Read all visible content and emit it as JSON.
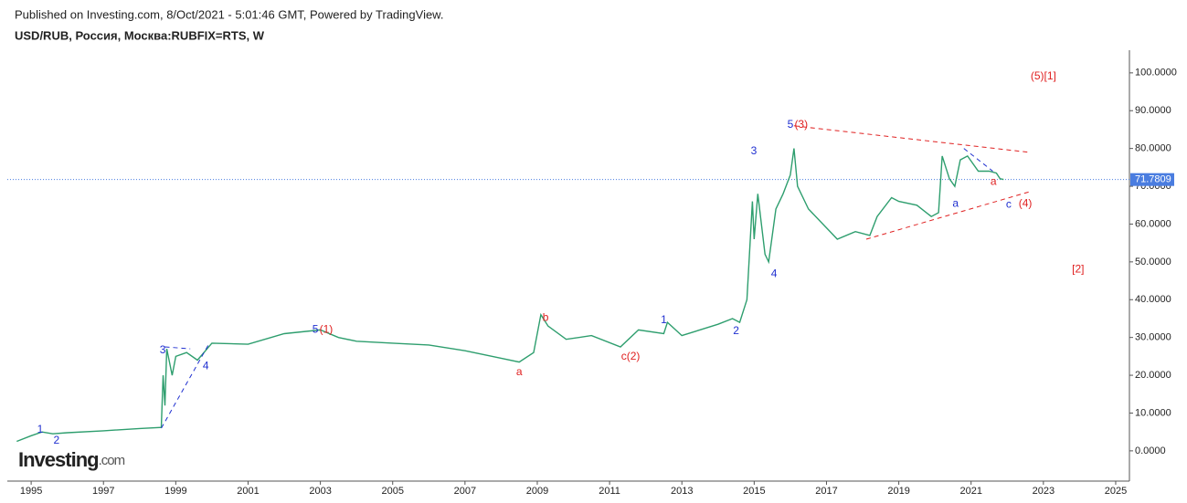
{
  "chart_data": {
    "type": "line",
    "published": "Published on Investing.com, 8/Oct/2021 - 5:01:46 GMT, Powered by TradingView.",
    "title": "USD/RUB, Россия, Москва:RUBFIX=RTS, W",
    "logo": "Investing",
    "logo_suffix": ".com",
    "color": "#2e9e6e",
    "x": [
      1994.6,
      1995.0,
      1995.3,
      1995.6,
      1996.0,
      1997.0,
      1998.0,
      1998.6,
      1998.65,
      1998.7,
      1998.75,
      1998.9,
      1999.0,
      1999.3,
      1999.6,
      2000.0,
      2001.0,
      2002.0,
      2003.0,
      2003.5,
      2004.0,
      2005.0,
      2006.0,
      2007.0,
      2008.0,
      2008.5,
      2008.9,
      2009.1,
      2009.3,
      2009.8,
      2010.5,
      2011.3,
      2011.8,
      2012.5,
      2012.6,
      2013.0,
      2014.0,
      2014.4,
      2014.6,
      2014.8,
      2014.95,
      2015.0,
      2015.1,
      2015.3,
      2015.4,
      2015.6,
      2015.8,
      2016.0,
      2016.1,
      2016.2,
      2016.5,
      2017.0,
      2017.3,
      2017.8,
      2018.2,
      2018.4,
      2018.8,
      2019.0,
      2019.5,
      2019.9,
      2020.1,
      2020.2,
      2020.4,
      2020.55,
      2020.7,
      2020.9,
      2021.2,
      2021.5,
      2021.7,
      2021.8,
      2021.9
    ],
    "values": [
      2.5,
      4.0,
      5.0,
      4.5,
      4.8,
      5.3,
      5.9,
      6.2,
      20,
      12,
      27,
      20,
      25,
      26,
      24,
      28.5,
      28.2,
      31,
      32,
      30,
      29,
      28.5,
      28,
      26.5,
      24.5,
      23.5,
      26,
      36,
      33,
      29.5,
      30.5,
      27.5,
      32,
      31,
      34,
      30.5,
      33.5,
      35,
      34,
      40,
      66,
      56,
      68,
      52,
      50,
      64,
      68,
      73,
      80,
      70,
      64,
      59,
      56,
      58,
      57,
      62,
      67,
      66,
      65,
      62,
      63,
      78,
      72,
      70,
      77,
      78,
      74,
      74,
      73.5,
      72,
      71.8
    ],
    "last_price": 71.7809,
    "last_price_color": "#4a7de0",
    "xlim": [
      1994.34,
      2025.38
    ],
    "ylim": [
      -8,
      106
    ],
    "xticks": [
      1995,
      1997,
      1999,
      2001,
      2003,
      2005,
      2007,
      2009,
      2011,
      2013,
      2015,
      2017,
      2019,
      2021,
      2023,
      2025
    ],
    "yticks": [
      {
        "value": 0,
        "label": "0.0000"
      },
      {
        "value": 10,
        "label": "10.0000"
      },
      {
        "value": 20,
        "label": "20.0000"
      },
      {
        "value": 30,
        "label": "30.0000"
      },
      {
        "value": 40,
        "label": "40.0000"
      },
      {
        "value": 50,
        "label": "50.0000"
      },
      {
        "value": 60,
        "label": "60.0000"
      },
      {
        "value": 70,
        "label": "70.0000"
      },
      {
        "value": 80,
        "label": "80.0000"
      },
      {
        "value": 90,
        "label": "90.0000"
      },
      {
        "value": 100,
        "label": "100.0000"
      }
    ],
    "trend_lines": [
      {
        "color": "#e02020",
        "points": [
          [
            2016.1,
            86
          ],
          [
            2022.6,
            79
          ]
        ]
      },
      {
        "color": "#e02020",
        "points": [
          [
            2018.1,
            56
          ],
          [
            2022.6,
            68.5
          ]
        ]
      },
      {
        "color": "#2030d0",
        "points": [
          [
            1998.6,
            6
          ],
          [
            1999.9,
            28
          ]
        ]
      },
      {
        "color": "#2030d0",
        "points": [
          [
            1998.7,
            27.5
          ],
          [
            1999.4,
            27
          ]
        ]
      },
      {
        "color": "#2030d0",
        "points": [
          [
            2020.8,
            80
          ],
          [
            2021.6,
            74
          ]
        ]
      }
    ],
    "annotations": [
      {
        "text": "1",
        "x": 1995.25,
        "y": 5.6,
        "color": "#2030d0"
      },
      {
        "text": "2",
        "x": 1995.7,
        "y": 2.7,
        "color": "#2030d0"
      },
      {
        "text": "3",
        "x": 1998.64,
        "y": 26.6,
        "color": "#2030d0"
      },
      {
        "text": "4",
        "x": 1999.83,
        "y": 22.3,
        "color": "#2030d0"
      },
      {
        "text": "5",
        "x": 2002.86,
        "y": 32.0,
        "color": "#2030d0"
      },
      {
        "text": "(1)",
        "x": 2003.16,
        "y": 32.0,
        "color": "#e02020"
      },
      {
        "text": "a",
        "x": 2008.5,
        "y": 20.8,
        "color": "#e02020"
      },
      {
        "text": "b",
        "x": 2009.23,
        "y": 35.1,
        "color": "#e02020"
      },
      {
        "text": "c(2)",
        "x": 2011.58,
        "y": 24.9,
        "color": "#e02020"
      },
      {
        "text": "1",
        "x": 2012.5,
        "y": 34.6,
        "color": "#2030d0"
      },
      {
        "text": "2",
        "x": 2014.5,
        "y": 31.7,
        "color": "#2030d0"
      },
      {
        "text": "3",
        "x": 2014.99,
        "y": 79.2,
        "color": "#2030d0"
      },
      {
        "text": "4",
        "x": 2015.55,
        "y": 46.7,
        "color": "#2030d0"
      },
      {
        "text": "5",
        "x": 2016.0,
        "y": 86.2,
        "color": "#2030d0"
      },
      {
        "text": "(3)",
        "x": 2016.3,
        "y": 86.2,
        "color": "#e02020"
      },
      {
        "text": "a",
        "x": 2020.57,
        "y": 65.4,
        "color": "#2030d0"
      },
      {
        "text": "a",
        "x": 2021.62,
        "y": 71.2,
        "color": "#e02020"
      },
      {
        "text": "c",
        "x": 2022.04,
        "y": 65.1,
        "color": "#2030d0"
      },
      {
        "text": "(4)",
        "x": 2022.5,
        "y": 65.4,
        "color": "#e02020"
      },
      {
        "text": "(5)[1]",
        "x": 2023.0,
        "y": 99.0,
        "color": "#e02020"
      },
      {
        "text": "[2]",
        "x": 2023.96,
        "y": 47.9,
        "color": "#e02020"
      }
    ]
  }
}
